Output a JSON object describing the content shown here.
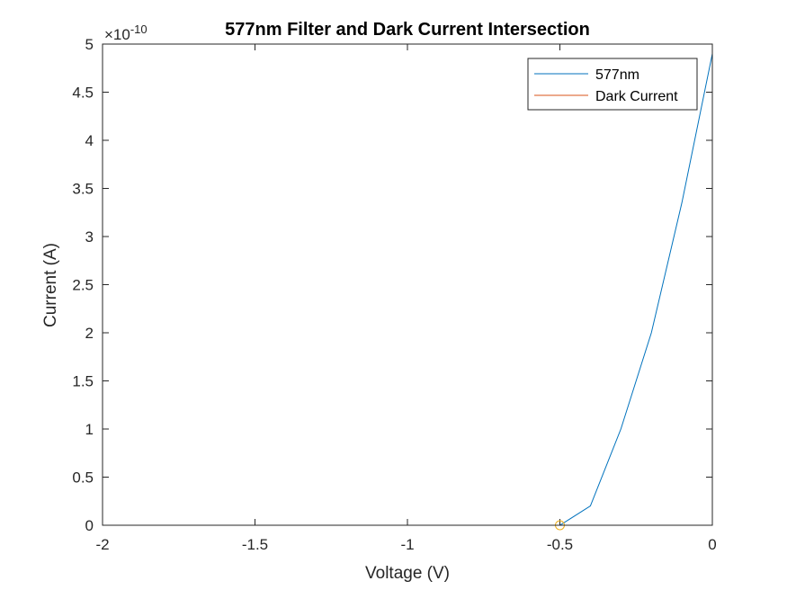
{
  "chart_data": {
    "type": "line",
    "title": "577nm Filter and Dark Current Intersection",
    "xlabel": "Voltage (V)",
    "ylabel": "Current (A)",
    "y_exponent_prefix": "×10",
    "y_exponent_power": "-10",
    "xlim": [
      -2,
      0
    ],
    "ylim": [
      0,
      5
    ],
    "x_ticks": [
      -2,
      -1.5,
      -1,
      -0.5,
      0
    ],
    "x_tick_labels": [
      "-2",
      "-1.5",
      "-1",
      "-0.5",
      "0"
    ],
    "y_ticks": [
      0,
      0.5,
      1,
      1.5,
      2,
      2.5,
      3,
      3.5,
      4,
      4.5,
      5
    ],
    "y_tick_labels": [
      "0",
      "0.5",
      "1",
      "1.5",
      "2",
      "2.5",
      "3",
      "3.5",
      "4",
      "4.5",
      "5"
    ],
    "grid": false,
    "legend_position": "top-right",
    "series": [
      {
        "name": "577nm",
        "color": "#0072BD",
        "x": [
          -2,
          -1.9,
          -1.8,
          -1.7,
          -1.6,
          -1.5,
          -1.4,
          -1.3,
          -1.2,
          -1.1,
          -1.0,
          -0.9,
          -0.8,
          -0.7,
          -0.6,
          -0.5,
          -0.4,
          -0.3,
          -0.2,
          -0.1,
          0.0
        ],
        "y": [
          0,
          0,
          0,
          0,
          0,
          0,
          0,
          0,
          0,
          0,
          0,
          0,
          0,
          0,
          0,
          0,
          0.2,
          1.0,
          2.0,
          3.35,
          4.9
        ]
      },
      {
        "name": "Dark Current",
        "color": "#D95319",
        "x": [
          -2,
          -1.5,
          -1.0,
          -0.5,
          0.0
        ],
        "y": [
          0,
          0,
          0,
          0,
          0
        ]
      }
    ],
    "markers": [
      {
        "shape": "circle",
        "color": "#EDB120",
        "x": -0.5,
        "y": 0
      }
    ]
  }
}
